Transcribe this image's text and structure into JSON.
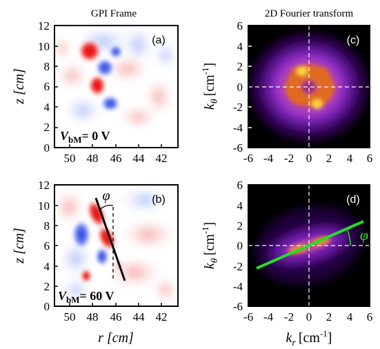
{
  "columns": {
    "left_title": "GPI Frame",
    "right_title": "2D Fourier transform"
  },
  "panels": {
    "a": {
      "label": "(a)",
      "annotation_main": "V",
      "annotation_sub": "bM",
      "annotation_value": "= 0 V"
    },
    "b": {
      "label": "(b)",
      "annotation_main": "V",
      "annotation_sub": "bM",
      "annotation_value": "= 60 V",
      "angle_symbol": "φ"
    },
    "c": {
      "label": "(c)"
    },
    "d": {
      "label": "(d)",
      "angle_symbol": "φ"
    }
  },
  "axes": {
    "z_label": "z [cm]",
    "r_label": "r [cm]",
    "ktheta_main": "k",
    "ktheta_sub": "θ",
    "ktheta_unit": "[cm",
    "ktheta_exp": "-1",
    "ktheta_close": "]",
    "kr_main": "k",
    "kr_sub": "r",
    "kr_unit": "[cm",
    "kr_exp": "-1",
    "kr_close": "]",
    "z_ticks": [
      "12",
      "10",
      "8",
      "6",
      "4",
      "2",
      "0"
    ],
    "r_ticks": [
      "50",
      "48",
      "46",
      "44",
      "42"
    ],
    "k_ticks_y": [
      "6",
      "4",
      "2",
      "0",
      "-2",
      "-4",
      "-6"
    ],
    "k_ticks_x": [
      "-6",
      "-4",
      "-2",
      "0",
      "2",
      "4",
      "6"
    ]
  },
  "colors": {
    "positive": "#e41a1c",
    "negative": "#2a4bd7",
    "spectrum_bg": "#000000",
    "spectrum_mid": "#7b22c8",
    "spectrum_high": "#f08a18",
    "fit_line": "#22e022"
  }
}
